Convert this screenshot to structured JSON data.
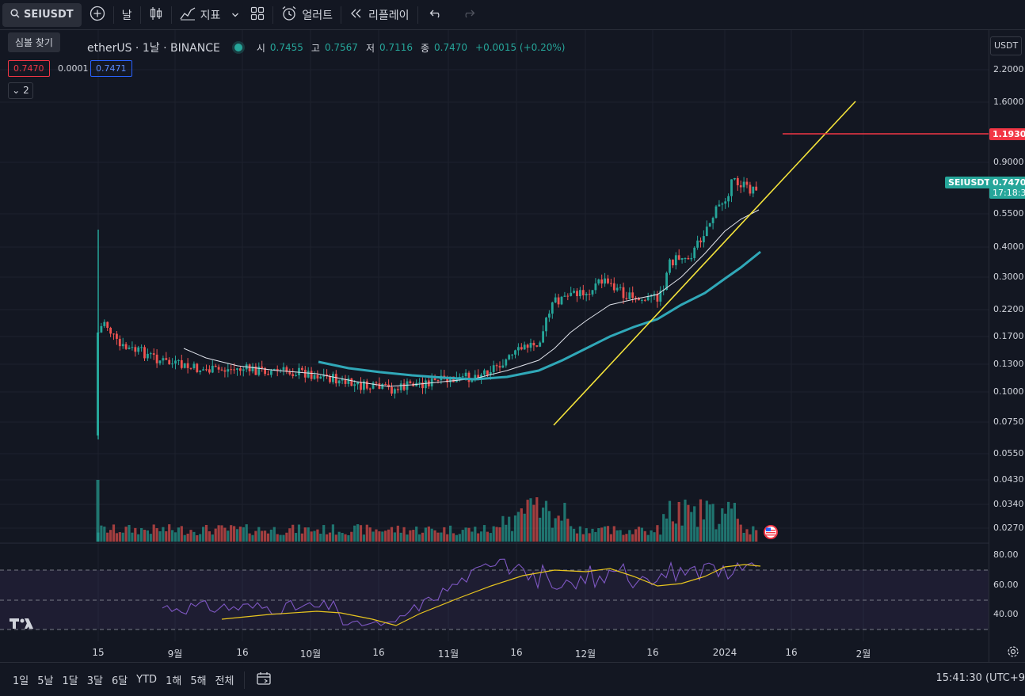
{
  "toolbar": {
    "symbol": "SEIUSDT",
    "interval": "날",
    "indicators": "지표",
    "alerts": "얼러트",
    "replay": "리플레이"
  },
  "tooltip": "심볼 찾기",
  "legend": {
    "name": "etherUS · 1날 · BINANCE",
    "open_label": "시",
    "open": "0.7455",
    "high_label": "고",
    "high": "0.7567",
    "low_label": "저",
    "low": "0.7116",
    "close_label": "종",
    "close": "0.7470",
    "change": "+0.0015 (+0.20%)"
  },
  "quote": {
    "bid": "0.7470",
    "spread": "0.0001",
    "ask": "0.7471"
  },
  "indicator_collapse": "2",
  "price_axis": {
    "currency": "USDT",
    "ticks": [
      "2.2000",
      "1.6000",
      "0.9000",
      "0.5500",
      "0.4000",
      "0.3000",
      "0.2200",
      "0.1700",
      "0.1300",
      "0.1000",
      "0.0750",
      "0.0550",
      "0.0430",
      "0.0340",
      "0.0270"
    ],
    "alert_price": "1.1930",
    "symbol_tag": "SEIUSDT",
    "last_price": "0.7470",
    "countdown": "17:18:3"
  },
  "rsi_axis": {
    "ticks": [
      "80.00",
      "60.00",
      "40.00"
    ]
  },
  "time_axis": {
    "labels": [
      "15",
      "9월",
      "16",
      "10월",
      "16",
      "11월",
      "16",
      "12월",
      "16",
      "2024",
      "16",
      "2월"
    ]
  },
  "colors": {
    "up": "#26a69a",
    "down": "#ef5350",
    "ma_slow": "#30a8b8",
    "trend": "#f5e43b",
    "alert": "#f23645",
    "rsi": "#7e57c2",
    "rsi_ma": "#e8c51f"
  },
  "ranges": [
    "1일",
    "5날",
    "1달",
    "3달",
    "6달",
    "YTD",
    "1해",
    "5해",
    "전체"
  ],
  "clock": "15:41:30 (UTC+9"
}
